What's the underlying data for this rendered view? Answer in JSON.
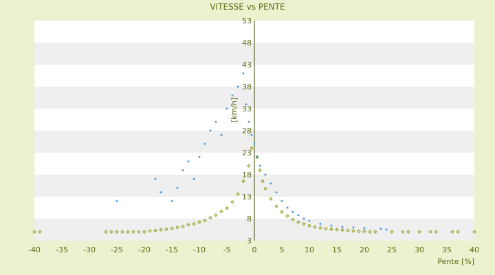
{
  "chart_data": {
    "type": "scatter",
    "title": "VITESSE vs PENTE",
    "xlabel": "Pente [%]",
    "ylabel": "[km/h]",
    "xlim": [
      -40,
      40
    ],
    "ylim": [
      3,
      53
    ],
    "x_ticks": [
      -40,
      -35,
      -30,
      -25,
      -20,
      -15,
      -10,
      -5,
      0,
      5,
      10,
      15,
      20,
      25,
      30,
      35,
      40
    ],
    "y_ticks": [
      3,
      8,
      13,
      18,
      23,
      28,
      33,
      38,
      43,
      48,
      53
    ],
    "band_colors": [
      "#ffffff",
      "#efefef"
    ],
    "series": [
      {
        "color": "#8a9a10",
        "marker": "diamond",
        "points": [
          [
            -40,
            5
          ],
          [
            -39,
            5
          ],
          [
            -27,
            5
          ],
          [
            -26,
            5
          ],
          [
            -25,
            5
          ],
          [
            -24,
            5
          ],
          [
            -23,
            5
          ],
          [
            -22,
            5
          ],
          [
            -21,
            5
          ],
          [
            -20,
            5
          ],
          [
            -19,
            5.2
          ],
          [
            -18,
            5.3
          ],
          [
            -17,
            5.5
          ],
          [
            -16,
            5.6
          ],
          [
            -15,
            5.8
          ],
          [
            -14,
            6.0
          ],
          [
            -13,
            6.2
          ],
          [
            -12,
            6.6
          ],
          [
            -11,
            6.8
          ],
          [
            -10,
            7.2
          ],
          [
            -9,
            7.6
          ],
          [
            -8,
            8.2
          ],
          [
            -7,
            8.8
          ],
          [
            -6,
            9.6
          ],
          [
            -5,
            10.4
          ],
          [
            -4,
            11.8
          ],
          [
            -3,
            13.6
          ],
          [
            -2,
            16.5
          ],
          [
            -1,
            20
          ],
          [
            -0.5,
            24
          ],
          [
            0.5,
            22
          ],
          [
            1,
            19
          ],
          [
            1.5,
            16.5
          ],
          [
            2,
            14.8
          ],
          [
            3,
            12.5
          ],
          [
            4,
            10.8
          ],
          [
            5,
            9.5
          ],
          [
            6,
            8.6
          ],
          [
            7,
            7.8
          ],
          [
            8,
            7.2
          ],
          [
            9,
            6.8
          ],
          [
            10,
            6.4
          ],
          [
            11,
            6.1
          ],
          [
            12,
            5.9
          ],
          [
            13,
            5.7
          ],
          [
            14,
            5.6
          ],
          [
            15,
            5.5
          ],
          [
            16,
            5.4
          ],
          [
            17,
            5.3
          ],
          [
            18,
            5.2
          ],
          [
            19,
            5.1
          ],
          [
            20,
            5.1
          ],
          [
            21,
            5
          ],
          [
            22,
            5
          ],
          [
            25,
            5
          ],
          [
            27,
            5
          ],
          [
            28,
            5
          ],
          [
            30,
            5
          ],
          [
            32,
            5
          ],
          [
            33,
            5
          ],
          [
            36,
            5
          ],
          [
            37,
            5
          ],
          [
            40,
            5
          ]
        ]
      },
      {
        "color": "#2f8fd8",
        "marker": "plus",
        "points": [
          [
            -25,
            12
          ],
          [
            -18,
            17
          ],
          [
            -17,
            14
          ],
          [
            -15,
            12
          ],
          [
            -14,
            15
          ],
          [
            -13,
            19
          ],
          [
            -12,
            21
          ],
          [
            -11,
            17
          ],
          [
            -10,
            22
          ],
          [
            -9,
            25
          ],
          [
            -8,
            28
          ],
          [
            -7,
            30
          ],
          [
            -6,
            27
          ],
          [
            -5,
            33
          ],
          [
            -4,
            36
          ],
          [
            -3,
            38
          ],
          [
            -2,
            41
          ],
          [
            -1.5,
            34
          ],
          [
            -1,
            30
          ],
          [
            -0.5,
            27
          ],
          [
            0,
            25
          ],
          [
            0.5,
            22
          ],
          [
            1,
            20
          ],
          [
            2,
            18
          ],
          [
            3,
            16
          ],
          [
            4,
            14
          ],
          [
            5,
            12
          ],
          [
            6,
            10.5
          ],
          [
            7,
            9.5
          ],
          [
            8,
            8.8
          ],
          [
            9,
            8
          ],
          [
            10,
            7.5
          ],
          [
            12,
            6.8
          ],
          [
            14,
            6.4
          ],
          [
            16,
            6.1
          ],
          [
            18,
            6
          ],
          [
            20,
            5.8
          ],
          [
            23,
            5.7
          ],
          [
            24,
            5.5
          ]
        ]
      }
    ]
  }
}
